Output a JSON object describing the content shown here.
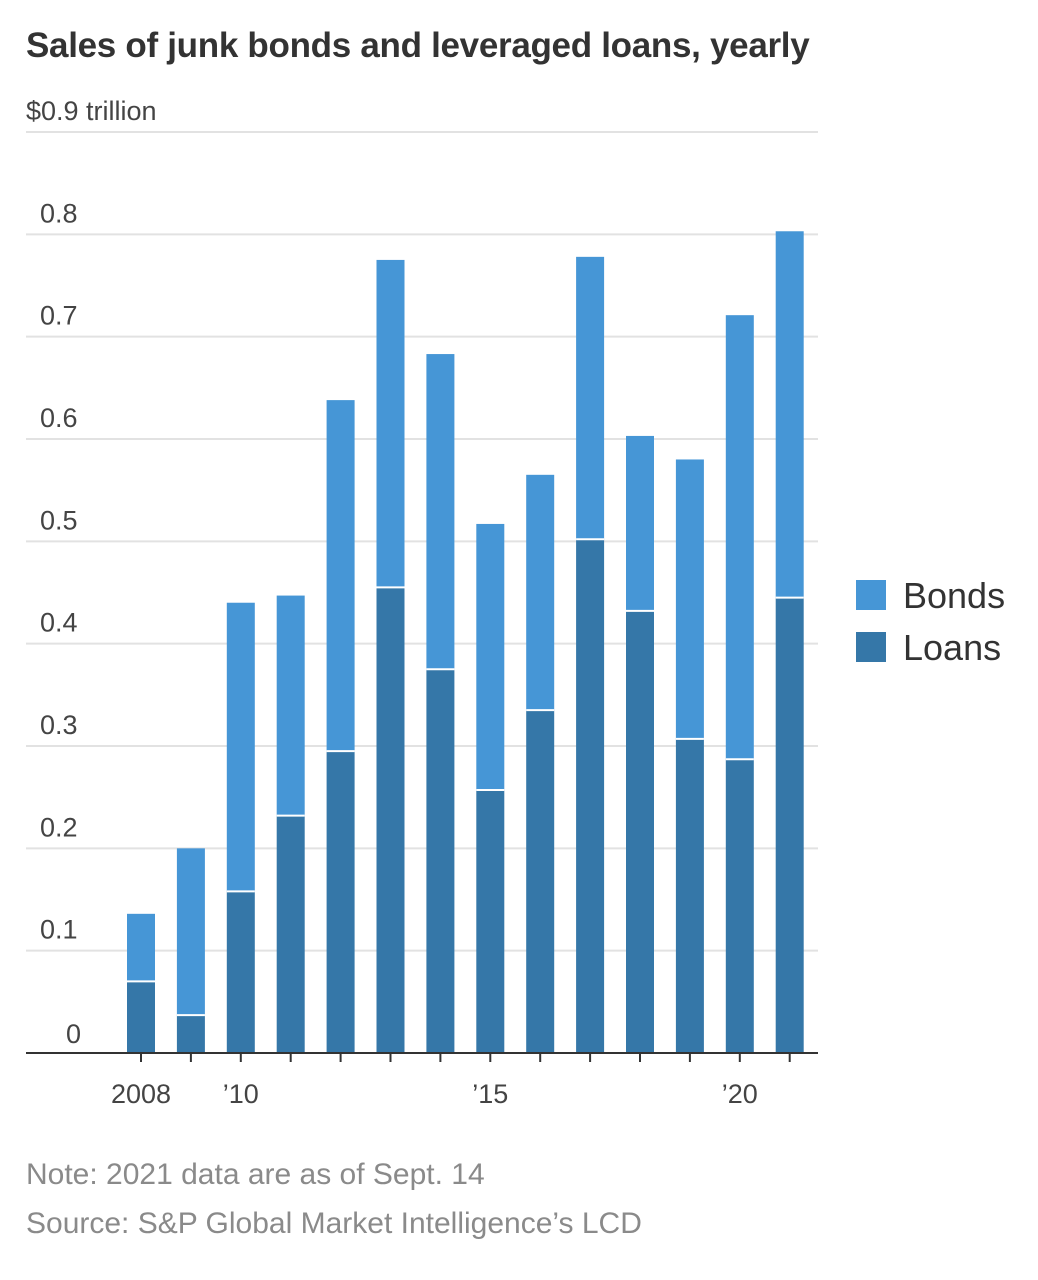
{
  "chart_data": {
    "type": "bar",
    "stacked": true,
    "title": "Sales of junk bonds and leveraged loans, yearly",
    "categories": [
      "2008",
      "2009",
      "2010",
      "2011",
      "2012",
      "2013",
      "2014",
      "2015",
      "2016",
      "2017",
      "2018",
      "2019",
      "2020",
      "2021"
    ],
    "series": [
      {
        "name": "Loans",
        "color": "#3577a8",
        "values": [
          0.07,
          0.037,
          0.158,
          0.232,
          0.295,
          0.455,
          0.375,
          0.257,
          0.335,
          0.502,
          0.432,
          0.307,
          0.287,
          0.445
        ]
      },
      {
        "name": "Bonds",
        "color": "#4696d6",
        "values": [
          0.066,
          0.163,
          0.282,
          0.215,
          0.343,
          0.32,
          0.308,
          0.26,
          0.23,
          0.276,
          0.171,
          0.273,
          0.434,
          0.358
        ]
      }
    ],
    "x_tick_labels": [
      {
        "category": "2008",
        "label": "2008"
      },
      {
        "category": "2010",
        "label": "’10"
      },
      {
        "category": "2015",
        "label": "’15"
      },
      {
        "category": "2020",
        "label": "’20"
      }
    ],
    "ylim": [
      0,
      0.9
    ],
    "y_ticks": [
      0,
      0.1,
      0.2,
      0.3,
      0.4,
      0.5,
      0.6,
      0.7,
      0.8,
      0.9
    ],
    "y_tick_labels": [
      "0",
      "0.1",
      "0.2",
      "0.3",
      "0.4",
      "0.5",
      "0.6",
      "0.7",
      "0.8",
      "$0.9 trillion"
    ],
    "legend": {
      "position": "right",
      "entries": [
        {
          "label": "Bonds",
          "color": "#4696d6"
        },
        {
          "label": "Loans",
          "color": "#3577a8"
        }
      ]
    },
    "grid": true,
    "note": "Note: 2021 data are as of Sept. 14",
    "source": "Source: S&P Global Market Intelligence’s LCD"
  }
}
